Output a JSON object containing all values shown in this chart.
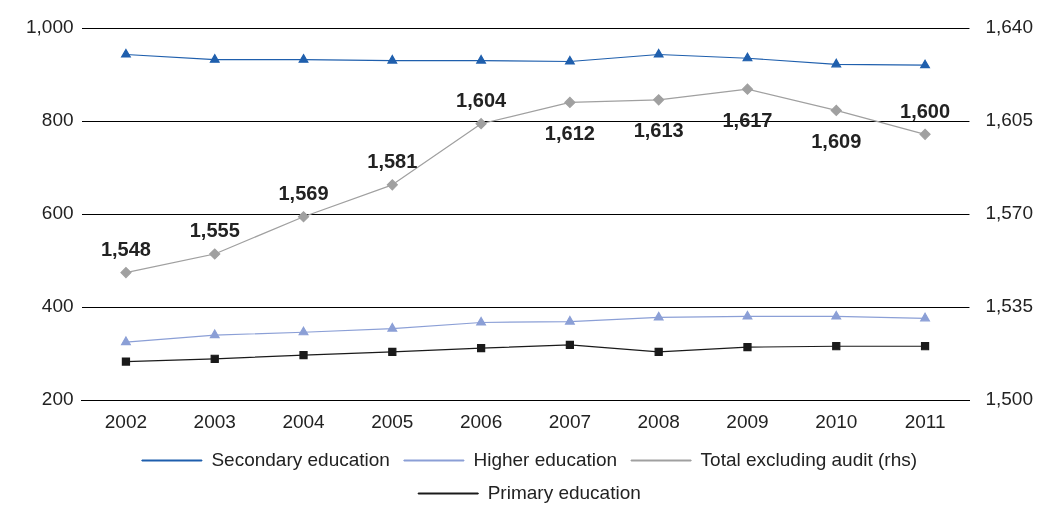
{
  "chart_data": {
    "type": "line",
    "categories": [
      "2002",
      "2003",
      "2004",
      "2005",
      "2006",
      "2007",
      "2008",
      "2009",
      "2010",
      "2011"
    ],
    "series": [
      {
        "name": "Secondary education",
        "color": "#1f5fad",
        "marker": "triangle",
        "values": [
          943,
          932,
          932,
          930,
          930,
          928,
          943,
          935,
          922,
          920
        ]
      },
      {
        "name": "Higher education",
        "color": "#8b9fd6",
        "marker": "triangle",
        "values": [
          325,
          340,
          346,
          354,
          367,
          369,
          378,
          380,
          380,
          376
        ]
      },
      {
        "name": "Total excluding audit (rhs)",
        "color": "#a0a0a0",
        "marker": "diamond",
        "axis": "y2",
        "values": [
          1548,
          1555,
          1569,
          1581,
          1604,
          1612,
          1613,
          1617,
          1609,
          1600
        ],
        "value_labels": [
          "1,548",
          "1,555",
          "1,569",
          "1,581",
          "1,604",
          "1,612",
          "1,613",
          "1,617",
          "1,609",
          "1,600"
        ]
      },
      {
        "name": "Primary education",
        "color": "#1a1a1a",
        "marker": "square",
        "values": [
          283,
          289,
          297,
          304,
          312,
          319,
          304,
          314,
          316,
          316
        ]
      }
    ],
    "ylim": [
      200,
      1000
    ],
    "yticks": [
      {
        "value": 200,
        "label": "200"
      },
      {
        "value": 400,
        "label": "400"
      },
      {
        "value": 600,
        "label": "600"
      },
      {
        "value": 800,
        "label": "800"
      },
      {
        "value": 1000,
        "label": "1,000"
      }
    ],
    "y2lim": [
      1500,
      1640
    ],
    "y2ticks": [
      {
        "value": 1500,
        "label": "1,500"
      },
      {
        "value": 1535,
        "label": "1,535"
      },
      {
        "value": 1570,
        "label": "1,570"
      },
      {
        "value": 1605,
        "label": "1,605"
      },
      {
        "value": 1640,
        "label": "1,640"
      }
    ],
    "grid": "y",
    "legend": "bottom"
  }
}
